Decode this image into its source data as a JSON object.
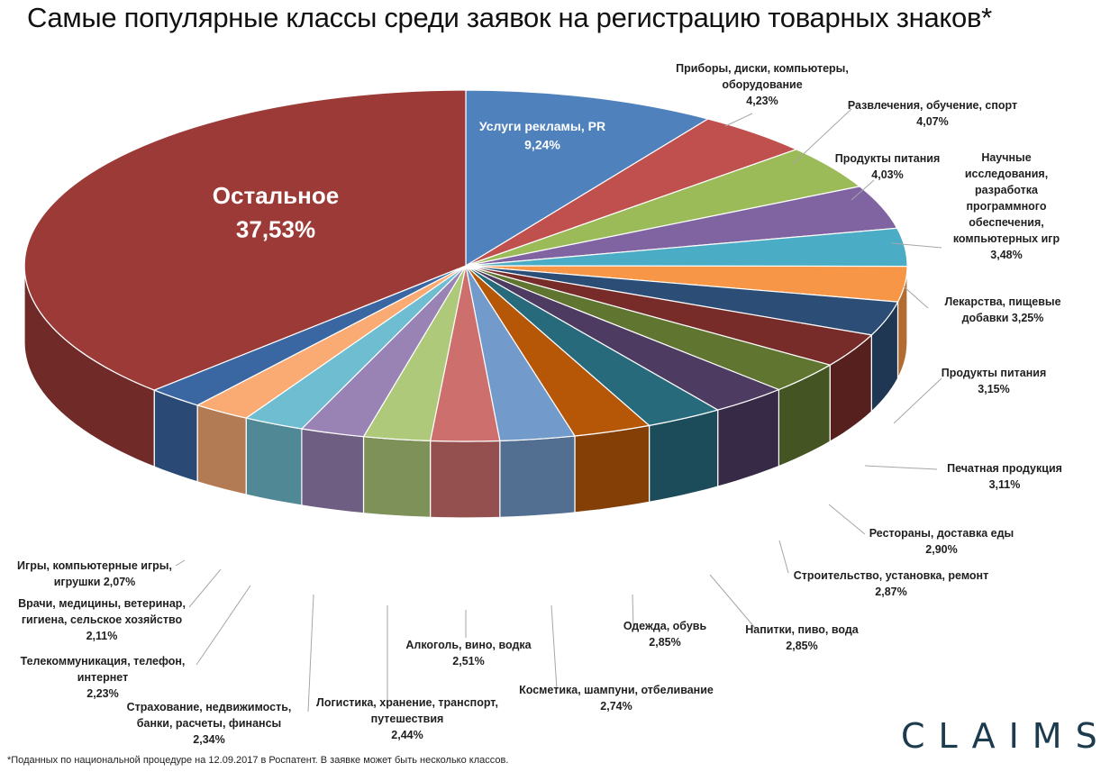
{
  "title": "Самые популярные классы среди заявок на регистрацию товарных знаков*",
  "footnote": "*Поданных по национальной процедуре на 12.09.2017 в Роспатент. В заявке может быть несколько классов.",
  "logo": "CLAIMS",
  "chart_data": {
    "type": "pie",
    "title": "Самые популярные классы среди заявок на регистрацию товарных знаков*",
    "slices": [
      {
        "label": [
          "Услуги рекламы, PR"
        ],
        "value_label": "9,24%",
        "value": 9.24,
        "color": "#4f81bd"
      },
      {
        "label": [
          "Приборы, диски, компьютеры,",
          "оборудование"
        ],
        "value_label": "4,23%",
        "value": 4.23,
        "color": "#c0504d"
      },
      {
        "label": [
          "Развлечения, обучение, спорт"
        ],
        "value_label": "4,07%",
        "value": 4.07,
        "color": "#9bbb59"
      },
      {
        "label": [
          "Продукты питания"
        ],
        "value_label": "4,03%",
        "value": 4.03,
        "color": "#8064a2"
      },
      {
        "label": [
          "Научные",
          "исследования,",
          "разработка",
          "программного",
          "обеспечения,",
          "компьютерных игр"
        ],
        "value_label": "3,48%",
        "value": 3.48,
        "color": "#4bacc6"
      },
      {
        "label": [
          "Лекарства, пищевые",
          "добавки 3,25%"
        ],
        "value_label": "",
        "value": 3.25,
        "color": "#f79646"
      },
      {
        "label": [
          "Продукты питания"
        ],
        "value_label": "3,15%",
        "value": 3.15,
        "color": "#2c4d75"
      },
      {
        "label": [
          "Печатная продукция"
        ],
        "value_label": "3,11%",
        "value": 3.11,
        "color": "#772c2a"
      },
      {
        "label": [
          "Рестораны, доставка еды"
        ],
        "value_label": "2,90%",
        "value": 2.9,
        "color": "#5f7530"
      },
      {
        "label": [
          "Строительство, установка, ремонт"
        ],
        "value_label": "2,87%",
        "value": 2.87,
        "color": "#4d3b62"
      },
      {
        "label": [
          "Напитки, пиво, вода"
        ],
        "value_label": "2,85%",
        "value": 2.85,
        "color": "#276a7c"
      },
      {
        "label": [
          "Одежда, обувь"
        ],
        "value_label": "2,85%",
        "value": 2.85,
        "color": "#b65708"
      },
      {
        "label": [
          "Косметика, шампуни, отбеливание"
        ],
        "value_label": "2,74%",
        "value": 2.74,
        "color": "#729aca"
      },
      {
        "label": [
          "Алкоголь, вино, водка"
        ],
        "value_label": "2,51%",
        "value": 2.51,
        "color": "#cd6f6c"
      },
      {
        "label": [
          "Логистика, хранение, транспорт,",
          "путешествия"
        ],
        "value_label": "2,44%",
        "value": 2.44,
        "color": "#afc97a"
      },
      {
        "label": [
          "Страхование, недвижимость,",
          "банки, расчеты, финансы"
        ],
        "value_label": "2,34%",
        "value": 2.34,
        "color": "#9983b5"
      },
      {
        "label": [
          "Телекоммуникация, телефон,",
          "интернет"
        ],
        "value_label": "2,23%",
        "value": 2.23,
        "color": "#6fbdd1"
      },
      {
        "label": [
          "Врачи, медицины, ветеринар,",
          "гигиена, сельское хозяйство"
        ],
        "value_label": "2,11%",
        "value": 2.11,
        "color": "#f9ab73"
      },
      {
        "label": [
          "Игры, компьютерные игры,",
          "игрушки 2,07%"
        ],
        "value_label": "",
        "value": 2.07,
        "color": "#3a67a2"
      },
      {
        "label": [
          "Остальное"
        ],
        "value_label": "37,53%",
        "value": 37.53,
        "color": "#9c3a37"
      }
    ]
  }
}
